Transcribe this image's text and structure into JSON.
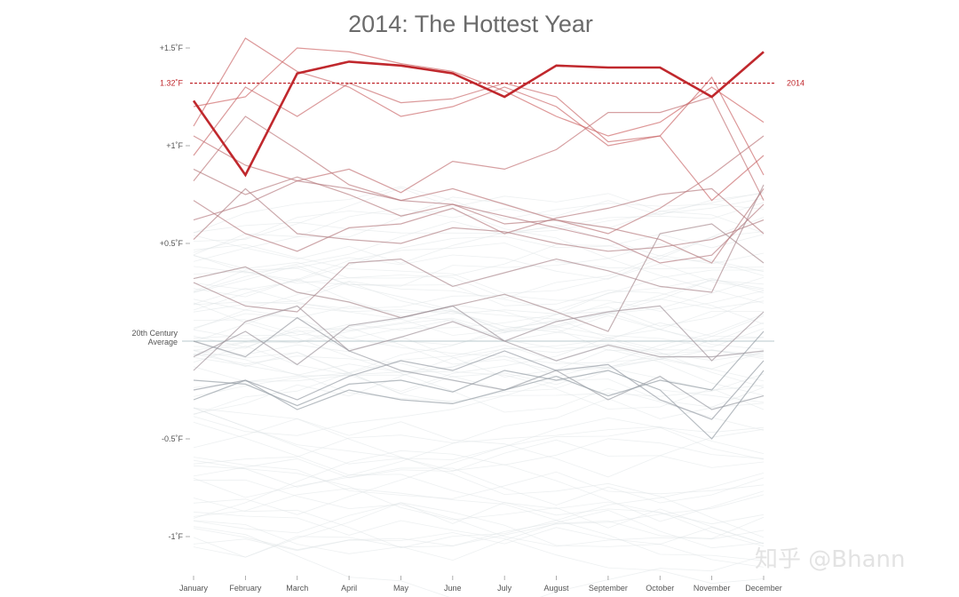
{
  "chart_data": {
    "type": "line",
    "title": "2014: The Hottest Year",
    "categories": [
      "January",
      "February",
      "March",
      "April",
      "May",
      "June",
      "July",
      "August",
      "September",
      "October",
      "November",
      "December"
    ],
    "y_ticks": [
      {
        "value": 1.5,
        "label": "+1.5˚F"
      },
      {
        "value": 1.32,
        "label": "1.32˚F"
      },
      {
        "value": 1.0,
        "label": "+1˚F"
      },
      {
        "value": 0.5,
        "label": "+0.5˚F"
      },
      {
        "value": 0.0,
        "label": "20th Century Average"
      },
      {
        "value": -0.5,
        "label": "-0.5˚F"
      },
      {
        "value": -1.0,
        "label": "-1˚F"
      }
    ],
    "ylim": [
      -1.2,
      1.6
    ],
    "baseline_value": 0.0,
    "reference_line": {
      "value": 1.32,
      "label": "1.32˚F",
      "right_label": "2014"
    },
    "highlight": {
      "name": "2014",
      "color": "#c0282d",
      "values": [
        1.23,
        0.85,
        1.37,
        1.43,
        1.41,
        1.37,
        1.25,
        1.41,
        1.4,
        1.4,
        1.25,
        1.48
      ]
    },
    "series": [
      {
        "values": [
          1.1,
          1.55,
          1.38,
          1.3,
          1.15,
          1.2,
          1.3,
          1.2,
          1.0,
          1.05,
          1.35,
          0.85
        ]
      },
      {
        "values": [
          1.2,
          1.25,
          1.5,
          1.48,
          1.42,
          1.38,
          1.28,
          1.15,
          1.05,
          1.12,
          1.3,
          1.12
        ]
      },
      {
        "values": [
          0.95,
          1.3,
          1.15,
          1.32,
          1.22,
          1.24,
          1.32,
          1.25,
          1.02,
          1.05,
          0.72,
          0.95
        ]
      },
      {
        "values": [
          1.05,
          0.9,
          0.82,
          0.88,
          0.76,
          0.92,
          0.88,
          0.98,
          1.17,
          1.17,
          1.25,
          0.72
        ]
      },
      {
        "values": [
          0.82,
          1.15,
          0.98,
          0.8,
          0.72,
          0.78,
          0.7,
          0.62,
          0.55,
          0.68,
          0.85,
          1.05
        ]
      },
      {
        "values": [
          0.62,
          0.7,
          0.82,
          0.78,
          0.72,
          0.7,
          0.64,
          0.58,
          0.52,
          0.4,
          0.44,
          0.7
        ]
      },
      {
        "values": [
          0.72,
          0.55,
          0.46,
          0.58,
          0.6,
          0.68,
          0.55,
          0.63,
          0.68,
          0.75,
          0.78,
          0.55
        ]
      },
      {
        "values": [
          0.52,
          0.78,
          0.55,
          0.52,
          0.5,
          0.58,
          0.56,
          0.5,
          0.46,
          0.48,
          0.52,
          0.62
        ]
      },
      {
        "values": [
          0.88,
          0.75,
          0.84,
          0.75,
          0.64,
          0.7,
          0.6,
          0.62,
          0.58,
          0.52,
          0.4,
          0.78
        ]
      },
      {
        "values": [
          0.3,
          0.18,
          0.15,
          0.4,
          0.42,
          0.28,
          0.35,
          0.42,
          0.36,
          0.28,
          0.25,
          0.8
        ]
      },
      {
        "values": [
          0.32,
          0.38,
          0.25,
          0.2,
          0.12,
          0.18,
          0.24,
          0.15,
          0.05,
          0.55,
          0.6,
          0.4
        ]
      },
      {
        "values": [
          -0.15,
          0.1,
          0.18,
          -0.05,
          0.02,
          0.1,
          0.0,
          0.1,
          0.15,
          0.18,
          -0.1,
          0.15
        ]
      },
      {
        "values": [
          -0.08,
          0.05,
          -0.12,
          0.08,
          0.12,
          0.18,
          0.0,
          -0.1,
          -0.02,
          -0.08,
          -0.08,
          -0.05
        ]
      },
      {
        "values": [
          -0.25,
          -0.2,
          -0.3,
          -0.18,
          -0.1,
          -0.15,
          -0.05,
          -0.15,
          -0.12,
          -0.3,
          -0.4,
          -0.1
        ]
      },
      {
        "values": [
          -0.2,
          -0.22,
          -0.33,
          -0.22,
          -0.2,
          -0.26,
          -0.15,
          -0.2,
          -0.15,
          -0.25,
          -0.5,
          -0.15
        ]
      },
      {
        "values": [
          0.0,
          -0.08,
          0.12,
          -0.05,
          -0.15,
          -0.2,
          -0.25,
          -0.15,
          -0.3,
          -0.18,
          -0.35,
          -0.28
        ]
      },
      {
        "values": [
          -0.3,
          -0.2,
          -0.35,
          -0.25,
          -0.3,
          -0.32,
          -0.25,
          -0.18,
          -0.28,
          -0.2,
          -0.25,
          0.05
        ]
      }
    ]
  },
  "watermark": "知乎 @Bhann"
}
